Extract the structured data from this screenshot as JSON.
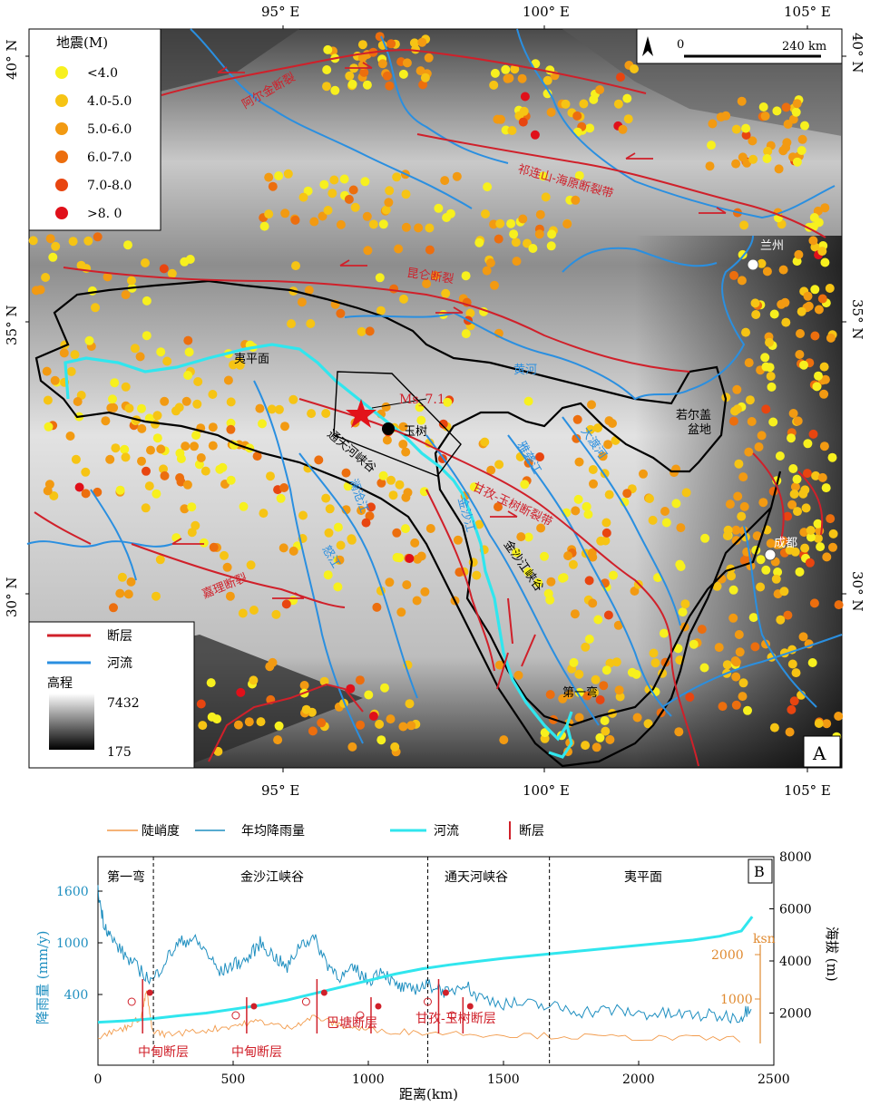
{
  "panel_a": {
    "label": "A",
    "lon_labels_top": [
      "95° E",
      "100° E",
      "105° E"
    ],
    "lon_labels_bottom": [
      "95° E",
      "100° E",
      "105° E"
    ],
    "lat_labels_left": [
      "40° N",
      "35° N",
      "30° N"
    ],
    "lat_labels_right": [
      "40° N",
      "35° N",
      "30° N"
    ],
    "scale_bar": {
      "start": "0",
      "end": "240 km"
    },
    "north_arrow": "north-arrow-icon",
    "legend_quakes": {
      "title": "地震(M)",
      "items": [
        {
          "label": "<4.0",
          "color": "#f7f01e"
        },
        {
          "label": "4.0-5.0",
          "color": "#f6c414"
        },
        {
          "label": "5.0-6.0",
          "color": "#f29a12"
        },
        {
          "label": "6.0-7.0",
          "color": "#ec6e0e"
        },
        {
          "label": "7.0-8.0",
          "color": "#e84510"
        },
        {
          "label": ">8. 0",
          "color": "#e0101a"
        }
      ]
    },
    "legend_lines": {
      "fault": "断层",
      "river": "河流",
      "elevation_title": "高程",
      "elev_max": "7432",
      "elev_min": "175"
    },
    "labels": {
      "altyn": "阿尔金断裂",
      "qilian": "祁连山-海原断裂带",
      "kunlun": "昆仑断裂",
      "yellow_river": "黄河",
      "lanzhou": "兰州",
      "chengdu": "成都",
      "ms": "Ms_7.1",
      "yushu": "玉树",
      "tongtian": "通天河峡谷",
      "yiping": "夷平面",
      "ruoergai": "若尔盖",
      "ruoergai2": "盆地",
      "garze": "甘孜-玉树断裂带",
      "jiali": "嘉理断裂",
      "jinsha_gorge": "金沙江峡谷",
      "first_bend": "第一弯",
      "lancang": "澜沧江",
      "nujiang": "怒江",
      "yalong": "雅砻江",
      "dadu": "大渡河",
      "jinsha": "金沙江"
    },
    "colors": {
      "fault": "#d0202a",
      "river": "#2a8fe0",
      "main_river": "#30e6ee",
      "basin": "#000000"
    }
  },
  "panel_b": {
    "label": "B",
    "legend": {
      "ksn": "陡峭度",
      "rain": "年均降雨量",
      "river": "河流",
      "fault": "断层"
    },
    "sections": [
      "第一弯",
      "金沙江峡谷",
      "通天河峡谷",
      "夷平面"
    ],
    "y_left_label": "降雨量 (mm/y)",
    "y_right_label": "海拔 (m)",
    "x_label": "距离(km)",
    "ksn_label": "ksn",
    "fault_labels": [
      "中甸断层",
      "中甸断层",
      "巴塘断层",
      "甘孜-玉树断层"
    ],
    "chart_data": {
      "type": "line",
      "x_ticks": [
        "0",
        "500",
        "1000",
        "1500",
        "2000",
        "2500"
      ],
      "y_left_ticks": [
        "1600",
        "1000",
        "400"
      ],
      "y_right_ticks": [
        "8000",
        "6000",
        "4000",
        "2000"
      ],
      "ksn_ticks": [
        "2000",
        "1000"
      ],
      "xlim": [
        0,
        2500
      ],
      "section_boundaries_km": [
        205,
        1220,
        1670
      ],
      "fault_positions_km": [
        165,
        550,
        810,
        1010,
        1260,
        1350
      ],
      "river_elevation": {
        "x": [
          0,
          100,
          200,
          300,
          400,
          500,
          600,
          700,
          800,
          900,
          1000,
          1100,
          1200,
          1300,
          1400,
          1500,
          1600,
          1700,
          1800,
          1900,
          2000,
          2100,
          2200,
          2300,
          2380,
          2420
        ],
        "y": [
          1650,
          1700,
          1780,
          1900,
          2000,
          2150,
          2300,
          2500,
          2750,
          3000,
          3250,
          3500,
          3700,
          3850,
          3980,
          4100,
          4200,
          4300,
          4400,
          4500,
          4600,
          4700,
          4800,
          4950,
          5150,
          5700
        ]
      },
      "rainfall": {
        "x": [
          0,
          20,
          50,
          100,
          150,
          200,
          250,
          300,
          350,
          400,
          450,
          500,
          550,
          600,
          650,
          700,
          750,
          800,
          850,
          900,
          950,
          1000,
          1050,
          1100,
          1150,
          1200,
          1250,
          1300,
          1350,
          1400,
          1500,
          1600,
          1700,
          1800,
          1900,
          2000,
          2100,
          2200,
          2300,
          2380,
          2420
        ],
        "y": [
          1600,
          1250,
          1050,
          850,
          700,
          550,
          800,
          1000,
          1050,
          900,
          650,
          750,
          800,
          1000,
          850,
          700,
          1000,
          1050,
          750,
          600,
          700,
          550,
          700,
          500,
          450,
          500,
          500,
          400,
          550,
          380,
          300,
          280,
          250,
          200,
          220,
          180,
          170,
          160,
          150,
          140,
          300
        ]
      },
      "ksn": {
        "x": [
          0,
          100,
          160,
          180,
          200,
          250,
          400,
          500,
          600,
          700,
          800,
          900,
          1000,
          1200,
          1500,
          1800,
          2100,
          2400
        ],
        "y": [
          150,
          350,
          600,
          1200,
          300,
          200,
          300,
          400,
          500,
          350,
          600,
          400,
          300,
          250,
          200,
          150,
          120,
          100
        ]
      }
    }
  }
}
